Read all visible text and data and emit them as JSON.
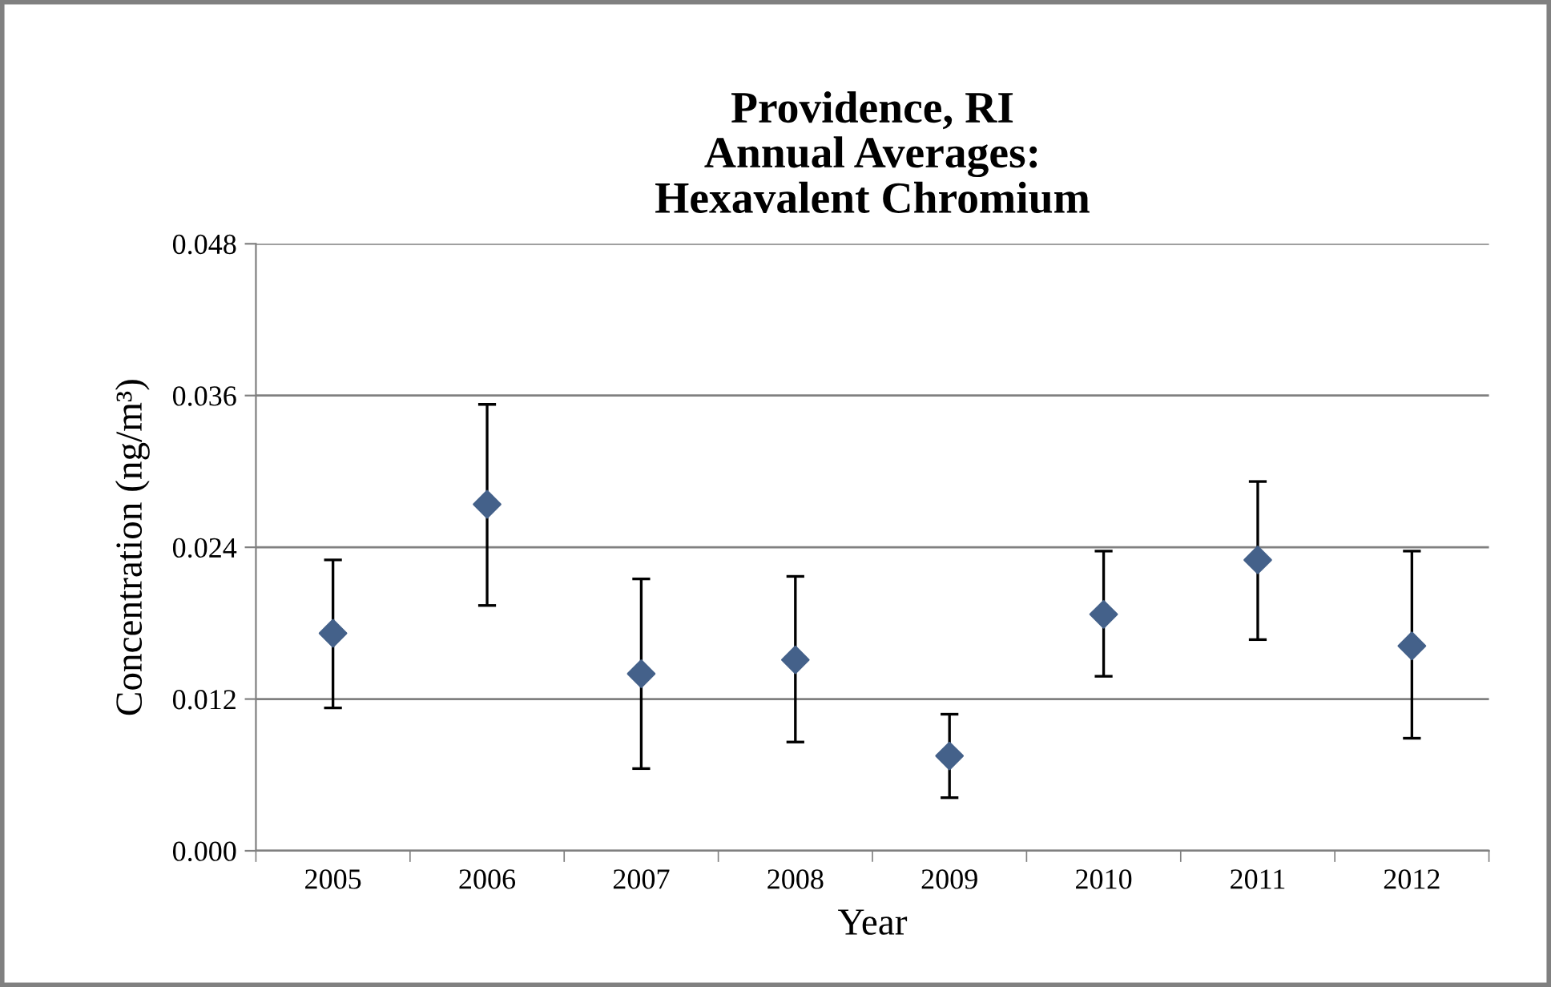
{
  "chart_data": {
    "type": "scatter",
    "title": "Providence, RI\nAnnual Averages:\nHexavalent Chromium",
    "xlabel": "Year",
    "ylabel": "Concentration (ng/m³)",
    "categories": [
      "2005",
      "2006",
      "2007",
      "2008",
      "2009",
      "2010",
      "2011",
      "2012"
    ],
    "series": [
      {
        "color": "#44618a",
        "values": [
          0.0172,
          0.0274,
          0.014,
          0.0151,
          0.0075,
          0.0187,
          0.023,
          0.0162
        ],
        "errors": [
          [
            0.0113,
            0.023
          ],
          [
            0.0194,
            0.0353
          ],
          [
            0.0065,
            0.0215
          ],
          [
            0.0086,
            0.0217
          ],
          [
            0.0042,
            0.0108
          ],
          [
            0.0138,
            0.0237
          ],
          [
            0.0167,
            0.0292
          ],
          [
            0.0089,
            0.0237
          ]
        ]
      }
    ],
    "ylim": [
      0,
      0.048
    ],
    "yticks": [
      {
        "value": 0,
        "label": "0.000"
      },
      {
        "value": 0.012,
        "label": "0.012"
      },
      {
        "value": 0.024,
        "label": "0.024"
      },
      {
        "value": 0.036,
        "label": "0.036"
      },
      {
        "value": 0.048,
        "label": "0.048"
      }
    ],
    "grid": "y",
    "marker": "diamond",
    "legend": false
  }
}
